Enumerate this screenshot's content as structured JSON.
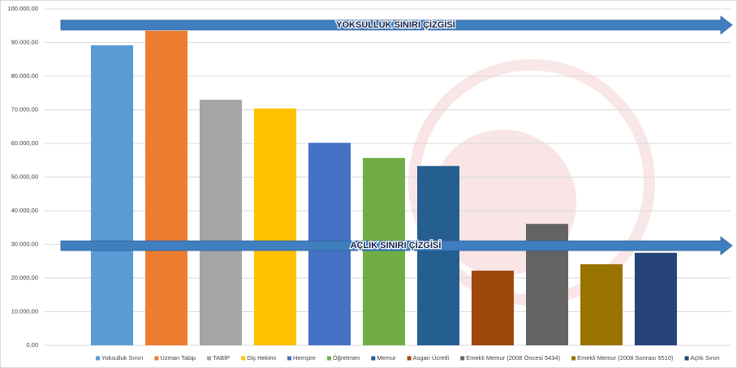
{
  "chart_data": {
    "type": "bar",
    "categories": [
      "Yoksulluk Sınırı",
      "Uzman Tabip",
      "TABİP",
      "Diş Hekimi",
      "Hemşire",
      "Öğretmen",
      "Memur",
      "Asgari Ücretli",
      "Emekli Memur  (2008 Öncesi 5434)",
      "Emekli Memur  (2008 Sonrası 5510)",
      "Açlık Sınırı"
    ],
    "values": [
      89200,
      93500,
      73000,
      70400,
      60200,
      55700,
      53300,
      22200,
      36100,
      24100,
      27500
    ],
    "colors": [
      "#5b9bd5",
      "#ed7d31",
      "#a5a5a5",
      "#ffc000",
      "#4472c4",
      "#70ad47",
      "#255e91",
      "#9e480e",
      "#636363",
      "#997300",
      "#264478"
    ],
    "ylim": [
      0,
      100000
    ],
    "yticks": [
      {
        "value": 0,
        "label": "0,00"
      },
      {
        "value": 10000,
        "label": "10.000,00"
      },
      {
        "value": 20000,
        "label": "20.000,00"
      },
      {
        "value": 30000,
        "label": "30.000,00"
      },
      {
        "value": 40000,
        "label": "40.000,00"
      },
      {
        "value": 50000,
        "label": "50.000,00"
      },
      {
        "value": 60000,
        "label": "60.000,00"
      },
      {
        "value": 70000,
        "label": "70.000,00"
      },
      {
        "value": 80000,
        "label": "80.000,00"
      },
      {
        "value": 90000,
        "label": "90.000,00"
      },
      {
        "value": 100000,
        "label": "100.000,00"
      }
    ],
    "grid": true,
    "legend": "bottom",
    "annotations": [
      {
        "text": "YOKSULLUK SINIRI ÇİZGİSİ",
        "y": 95200,
        "color": "#3f7fc0"
      },
      {
        "text": "AÇLIK SINIRI ÇİZGİSİ",
        "y": 29600,
        "color": "#3f7fc0"
      }
    ]
  }
}
